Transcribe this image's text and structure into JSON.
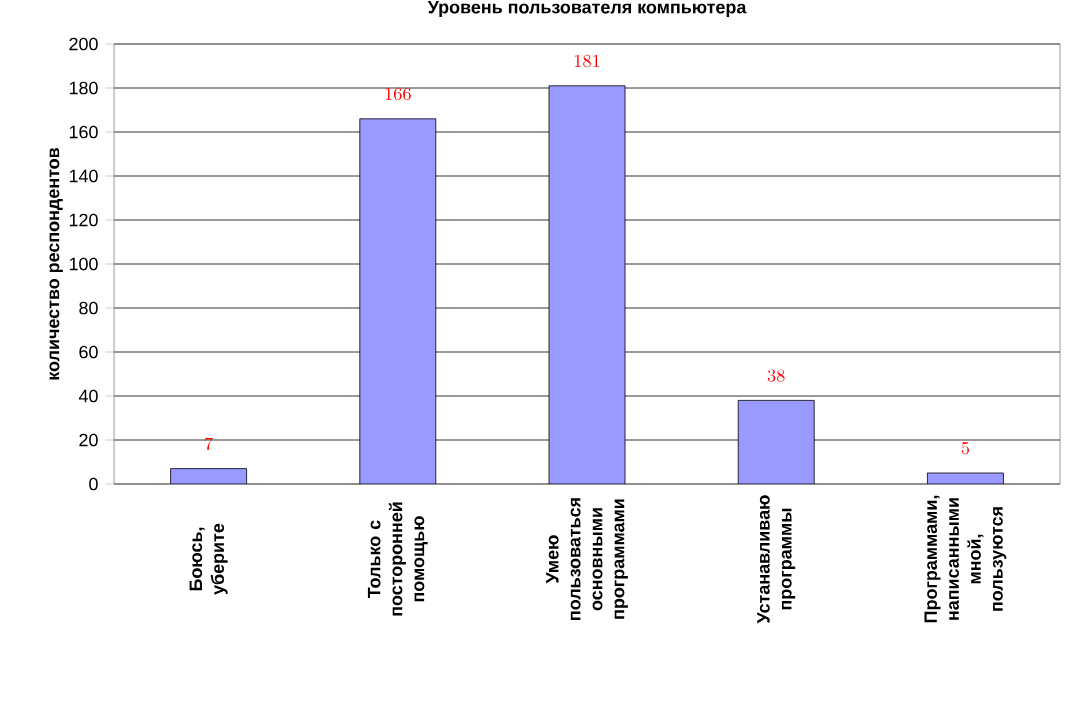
{
  "chart_data": {
    "type": "bar",
    "title": "Уровень пользователя компьютера",
    "ylabel": "количество респондентов",
    "categories": [
      "Боюсь, уберите",
      "Только с посторонней помощью",
      "Умею пользоваться основными программами",
      "Устанавливаю программы",
      "Программами, написанными мной, пользуются"
    ],
    "values": [
      7,
      166,
      181,
      38,
      5
    ],
    "color": "#9999ff",
    "ylim": [
      0,
      200
    ],
    "yticks": [
      0,
      20,
      40,
      60,
      80,
      100,
      120,
      140,
      160,
      180,
      200
    ],
    "grid": "y",
    "data_labels": true
  }
}
